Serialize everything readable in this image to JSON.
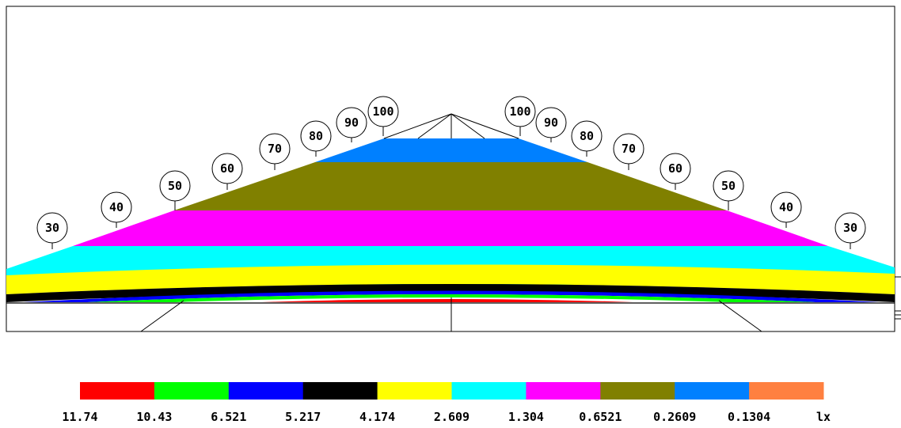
{
  "diagram": {
    "left_labels": [
      "30",
      "40",
      "50",
      "60",
      "70",
      "80",
      "90",
      "100"
    ],
    "right_labels": [
      "100",
      "90",
      "80",
      "70",
      "60",
      "50",
      "40",
      "30"
    ]
  },
  "legend": {
    "items": [
      {
        "value": "11.74",
        "color": "#ff0000"
      },
      {
        "value": "10.43",
        "color": "#00ff00"
      },
      {
        "value": "6.521",
        "color": "#0000ff"
      },
      {
        "value": "5.217",
        "color": "#000000"
      },
      {
        "value": "4.174",
        "color": "#ffff00"
      },
      {
        "value": "2.609",
        "color": "#00ffff"
      },
      {
        "value": "1.304",
        "color": "#ff00ff"
      },
      {
        "value": "0.6521",
        "color": "#808000"
      },
      {
        "value": "0.2609",
        "color": "#0080ff"
      },
      {
        "value": "0.1304",
        "color": "#ff8040"
      }
    ],
    "unit": "lx"
  }
}
